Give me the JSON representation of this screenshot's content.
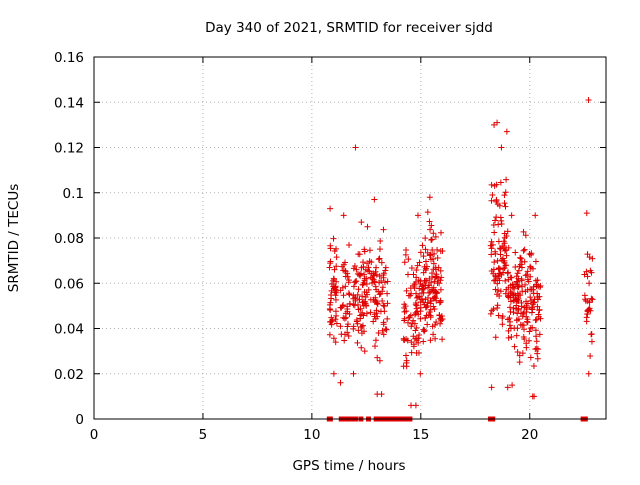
{
  "chart_data": {
    "type": "scatter",
    "title": "Day 340 of 2021, SRMTID for receiver sjdd",
    "xlabel": "GPS time / hours",
    "ylabel": "SRMTID / TECUs",
    "xlim": [
      0,
      23.5
    ],
    "ylim": [
      0,
      0.16
    ],
    "xticks": [
      0,
      5,
      10,
      15,
      20
    ],
    "yticks": [
      0,
      0.02,
      0.04,
      0.06,
      0.08,
      0.1,
      0.12,
      0.14,
      0.16
    ],
    "xtick_labels": [
      "0",
      "5",
      "10",
      "15",
      "20"
    ],
    "ytick_labels": [
      "0",
      "0.02",
      "0.04",
      "0.06",
      "0.08",
      "0.1",
      "0.12",
      "0.14",
      "0.16"
    ],
    "grid": true,
    "marker": "+",
    "color": "#e00000",
    "clusters": [
      {
        "x_range": [
          10.8,
          11.15
        ],
        "y_range": [
          0.02,
          0.093
        ],
        "count": 48
      },
      {
        "x_range": [
          11.3,
          11.75
        ],
        "y_range": [
          0.016,
          0.09
        ],
        "count": 40
      },
      {
        "x_range": [
          11.9,
          12.4
        ],
        "y_range": [
          0.02,
          0.087
        ],
        "count": 55
      },
      {
        "x_range": [
          12.4,
          12.8
        ],
        "y_range": [
          0.03,
          0.085
        ],
        "count": 30
      },
      {
        "x_range": [
          12.8,
          13.5
        ],
        "y_range": [
          0.011,
          0.097
        ],
        "count": 65
      },
      {
        "x_range": [
          14.2,
          14.9
        ],
        "y_range": [
          0.006,
          0.09
        ],
        "count": 70
      },
      {
        "x_range": [
          14.9,
          16.0
        ],
        "y_range": [
          0.02,
          0.098
        ],
        "count": 140
      },
      {
        "x_range": [
          18.2,
          19.0
        ],
        "y_range": [
          0.014,
          0.13
        ],
        "count": 95
      },
      {
        "x_range": [
          19.0,
          19.9
        ],
        "y_range": [
          0.015,
          0.09
        ],
        "count": 115
      },
      {
        "x_range": [
          19.9,
          20.5
        ],
        "y_range": [
          0.01,
          0.09
        ],
        "count": 65
      },
      {
        "x_range": [
          22.5,
          22.9
        ],
        "y_range": [
          0.02,
          0.091
        ],
        "count": 30
      }
    ],
    "outliers": [
      {
        "x": 12.0,
        "y": 0.12
      },
      {
        "x": 18.5,
        "y": 0.131
      },
      {
        "x": 18.95,
        "y": 0.127
      },
      {
        "x": 18.7,
        "y": 0.12
      },
      {
        "x": 22.7,
        "y": 0.141
      },
      {
        "x": 14.55,
        "y": 0.006
      },
      {
        "x": 13.0,
        "y": 0.011
      },
      {
        "x": 18.25,
        "y": 0.014
      },
      {
        "x": 20.2,
        "y": 0.01
      }
    ],
    "zero_values_x": [
      10.8,
      10.85,
      11.35,
      11.55,
      11.65,
      11.8,
      11.85,
      12.0,
      12.25,
      12.6,
      12.95,
      13.05,
      13.2,
      13.4,
      13.6,
      13.75,
      13.9,
      14.05,
      14.15,
      14.25,
      14.35,
      14.5,
      18.2,
      18.3,
      22.45,
      22.55
    ]
  }
}
